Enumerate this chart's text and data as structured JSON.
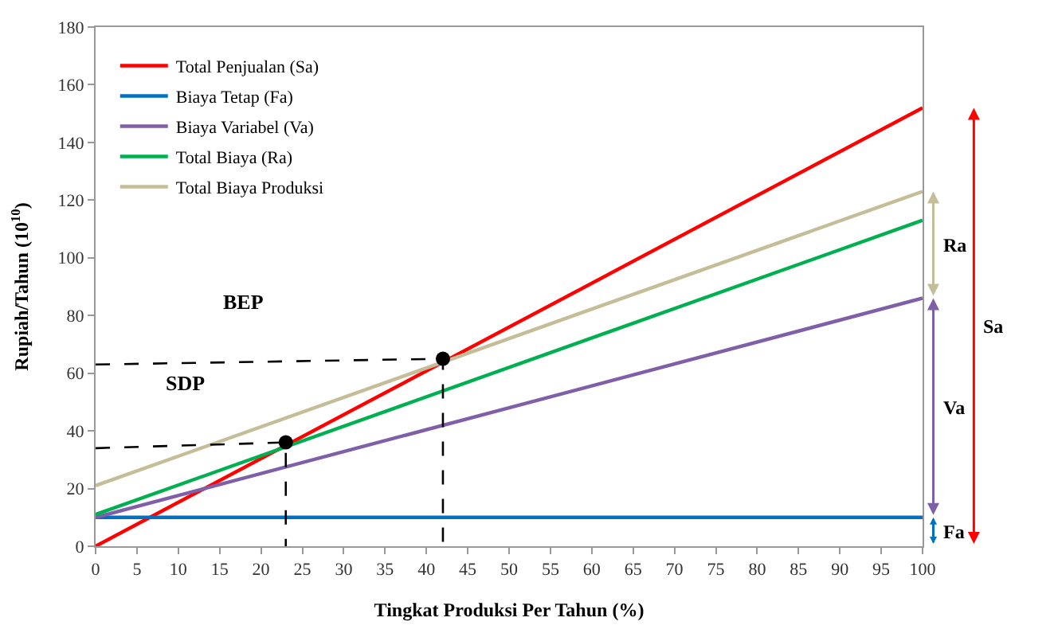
{
  "chart_data": {
    "type": "line",
    "xlabel": "Tingkat Produksi Per Tahun (%)",
    "ylabel": "Rupiah/Tahun (10$^{10}$)",
    "xlim": [
      0,
      100
    ],
    "ylim": [
      0,
      180
    ],
    "xticks": [
      0,
      5,
      10,
      15,
      20,
      25,
      30,
      35,
      40,
      45,
      50,
      55,
      60,
      65,
      70,
      75,
      80,
      85,
      90,
      95,
      100
    ],
    "yticks": [
      0,
      20,
      40,
      60,
      80,
      100,
      120,
      140,
      160,
      180
    ],
    "legend": "top left",
    "marker": "none",
    "line_style": "solid",
    "series": [
      {
        "name": "Total Penjualan (Sa)",
        "color": "#ff0000",
        "x": [
          0,
          100
        ],
        "values": [
          0,
          152
        ]
      },
      {
        "name": "Biaya Tetap (Fa)",
        "color": "#0070c0",
        "x": [
          0,
          100
        ],
        "values": [
          10,
          10
        ]
      },
      {
        "name": "Biaya Variabel (Va)",
        "color": "#7f5fa8",
        "x": [
          0,
          100
        ],
        "values": [
          10,
          86
        ]
      },
      {
        "name": "Total Biaya (Ra)",
        "color": "#00b050",
        "x": [
          0,
          100
        ],
        "values": [
          11,
          113
        ]
      },
      {
        "name": "Total Biaya Produksi",
        "color": "#c4bd97",
        "x": [
          0,
          100
        ],
        "values": [
          21,
          123
        ]
      },
      {
        "color": "#000000",
        "x": [
          0,
          23,
          23
        ],
        "values": [
          34,
          36,
          0
        ],
        "line_style": "dashed"
      },
      {
        "color": "#000000",
        "x": [
          0,
          42,
          42
        ],
        "values": [
          63,
          65,
          0
        ],
        "line_style": "dashed"
      },
      {
        "type": "scatter",
        "marker": "circle",
        "color": "#000000",
        "x": [
          23,
          42
        ],
        "values": [
          36,
          65
        ]
      }
    ],
    "annotations": [
      "BEP",
      "SDP",
      "Ra",
      "Va",
      "Sa",
      "Fa"
    ]
  }
}
